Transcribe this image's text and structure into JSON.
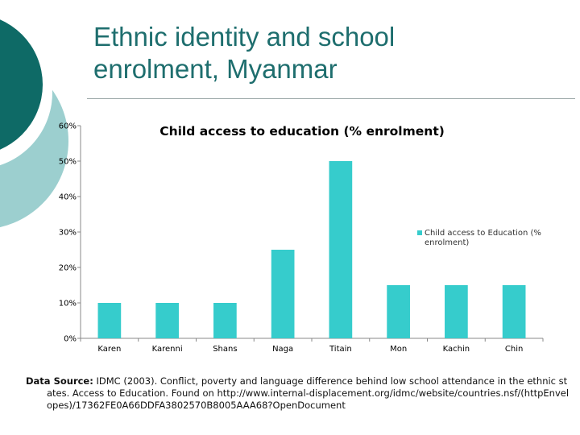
{
  "slide": {
    "title_line1": "Ethnic identity and school",
    "title_line2": "enrolment, Myanmar"
  },
  "theme": {
    "title_color": "#1e6e6e",
    "circle_dark": "#0e6a66",
    "circle_light": "#9ccfcf",
    "bar_color": "#36cccc"
  },
  "chart_data": {
    "type": "bar",
    "title": "Child access to education (% enrolment)",
    "categories": [
      "Karen",
      "Karenni",
      "Shans",
      "Naga",
      "Titain",
      "Mon",
      "Kachin",
      "Chin"
    ],
    "series": [
      {
        "name": "Child access to Education (% enrolment)",
        "values": [
          10,
          10,
          10,
          25,
          50,
          15,
          15,
          15
        ]
      }
    ],
    "ylim": [
      0,
      60
    ],
    "yticks": [
      "0%",
      "10%",
      "20%",
      "30%",
      "40%",
      "50%",
      "60%"
    ],
    "grid": false,
    "legend_position": "right"
  },
  "source": {
    "label": "Data Source:",
    "text": " IDMC (2003). Conflict, poverty and language difference behind low school attendance in the ethnic states. Access to Education. Found on http://www.internal-displacement.org/idmc/website/countries.nsf/(httpEnvelopes)/17362FE0A66DDFA3802570B8005AAA68?OpenDocument"
  }
}
